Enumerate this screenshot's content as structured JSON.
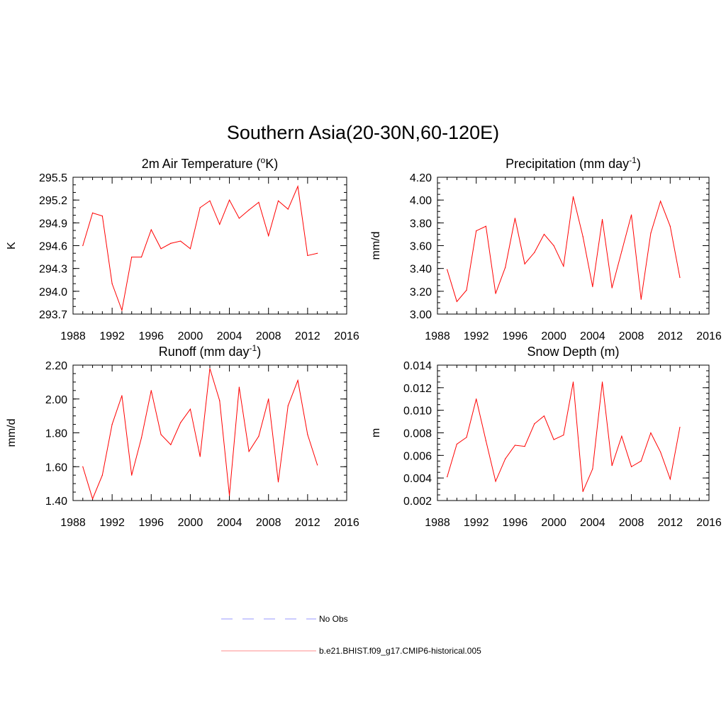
{
  "title": "Southern Asia(20-30N,60-120E)",
  "legend": {
    "obs": {
      "label": "No Obs",
      "color": "#9999ff",
      "style": "dashed"
    },
    "model": {
      "label": "b.e21.BHIST.f09_g17.CMIP6-historical.005",
      "color": "#ff0000",
      "style": "solid"
    }
  },
  "chart_data": [
    {
      "type": "line",
      "title": "2m Air Temperature (",
      "title_sup": "o",
      "title_post": "K)",
      "ylabel": "K",
      "xlim": [
        1988,
        2016
      ],
      "ylim": [
        293.7,
        295.5
      ],
      "xticks": [
        1988,
        1992,
        1996,
        2000,
        2004,
        2008,
        2012,
        2016
      ],
      "yticks": [
        "293.7",
        "294.0",
        "294.3",
        "294.6",
        "294.9",
        "295.2",
        "295.5"
      ],
      "yminor": 0.1,
      "x": [
        1989,
        1990,
        1991,
        1992,
        1993,
        1994,
        1995,
        1996,
        1997,
        1998,
        1999,
        2000,
        2001,
        2002,
        2003,
        2004,
        2005,
        2006,
        2007,
        2008,
        2009,
        2010,
        2011,
        2012,
        2013
      ],
      "series": [
        {
          "color": "#ff0000",
          "values": [
            294.6,
            295.03,
            294.99,
            294.1,
            293.75,
            294.45,
            294.45,
            294.81,
            294.56,
            294.63,
            294.66,
            294.56,
            295.1,
            295.19,
            294.88,
            295.2,
            294.96,
            295.07,
            295.17,
            294.73,
            295.19,
            295.08,
            295.38,
            294.47,
            294.5
          ]
        }
      ]
    },
    {
      "type": "line",
      "title": "Precipitation (mm day",
      "title_sup": "-1",
      "title_post": ")",
      "ylabel": "mm/d",
      "xlim": [
        1988,
        2016
      ],
      "ylim": [
        3.0,
        4.2
      ],
      "xticks": [
        1988,
        1992,
        1996,
        2000,
        2004,
        2008,
        2012,
        2016
      ],
      "yticks": [
        "3.00",
        "3.20",
        "3.40",
        "3.60",
        "3.80",
        "4.00",
        "4.20"
      ],
      "yminor": 0.05,
      "x": [
        1989,
        1990,
        1991,
        1992,
        1993,
        1994,
        1995,
        1996,
        1997,
        1998,
        1999,
        2000,
        2001,
        2002,
        2003,
        2004,
        2005,
        2006,
        2007,
        2008,
        2009,
        2010,
        2011,
        2012,
        2013
      ],
      "series": [
        {
          "color": "#ff0000",
          "values": [
            3.39,
            3.11,
            3.21,
            3.73,
            3.77,
            3.18,
            3.41,
            3.84,
            3.44,
            3.54,
            3.7,
            3.6,
            3.42,
            4.03,
            3.68,
            3.24,
            3.83,
            3.23,
            3.55,
            3.87,
            3.13,
            3.71,
            3.99,
            3.77,
            3.32
          ]
        }
      ]
    },
    {
      "type": "line",
      "title": "Runoff (mm day",
      "title_sup": "-1",
      "title_post": ")",
      "ylabel": "mm/d",
      "xlim": [
        1988,
        2016
      ],
      "ylim": [
        1.4,
        2.2
      ],
      "xticks": [
        1988,
        1992,
        1996,
        2000,
        2004,
        2008,
        2012,
        2016
      ],
      "yticks": [
        "1.40",
        "1.60",
        "1.80",
        "2.00",
        "2.20"
      ],
      "yminor": 0.05,
      "x": [
        1989,
        1990,
        1991,
        1992,
        1993,
        1994,
        1995,
        1996,
        1997,
        1998,
        1999,
        2000,
        2001,
        2002,
        2003,
        2004,
        2005,
        2006,
        2007,
        2008,
        2009,
        2010,
        2011,
        2012,
        2013
      ],
      "series": [
        {
          "color": "#ff0000",
          "values": [
            1.6,
            1.41,
            1.55,
            1.85,
            2.02,
            1.55,
            1.77,
            2.05,
            1.79,
            1.73,
            1.86,
            1.94,
            1.66,
            2.18,
            1.99,
            1.43,
            2.07,
            1.69,
            1.78,
            2.0,
            1.51,
            1.96,
            2.11,
            1.79,
            1.61
          ]
        }
      ]
    },
    {
      "type": "line",
      "title": "Snow Depth (m)",
      "title_sup": "",
      "title_post": "",
      "ylabel": "m",
      "xlim": [
        1988,
        2016
      ],
      "ylim": [
        0.002,
        0.014
      ],
      "xticks": [
        1988,
        1992,
        1996,
        2000,
        2004,
        2008,
        2012,
        2016
      ],
      "yticks": [
        "0.002",
        "0.004",
        "0.006",
        "0.008",
        "0.010",
        "0.012",
        "0.014"
      ],
      "yminor": 0.0005,
      "x": [
        1989,
        1990,
        1991,
        1992,
        1993,
        1994,
        1995,
        1996,
        1997,
        1998,
        1999,
        2000,
        2001,
        2002,
        2003,
        2004,
        2005,
        2006,
        2007,
        2008,
        2009,
        2010,
        2011,
        2012,
        2013
      ],
      "series": [
        {
          "color": "#ff0000",
          "values": [
            0.0041,
            0.007,
            0.0076,
            0.011,
            0.0073,
            0.0037,
            0.0057,
            0.0069,
            0.0068,
            0.0088,
            0.0095,
            0.0074,
            0.0078,
            0.0125,
            0.0028,
            0.0048,
            0.0125,
            0.0051,
            0.0077,
            0.005,
            0.0055,
            0.008,
            0.0063,
            0.0039,
            0.0085
          ]
        }
      ]
    }
  ]
}
